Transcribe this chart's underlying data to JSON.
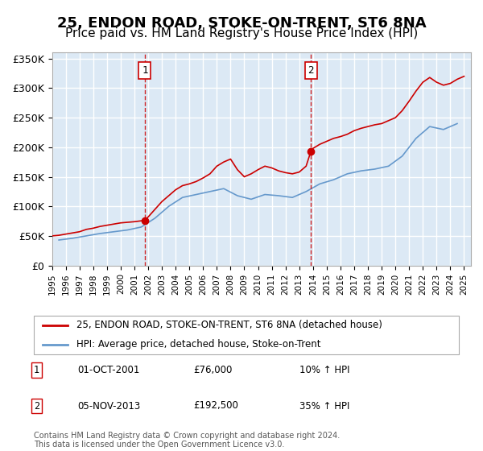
{
  "title": "25, ENDON ROAD, STOKE-ON-TRENT, ST6 8NA",
  "subtitle": "Price paid vs. HM Land Registry's House Price Index (HPI)",
  "title_fontsize": 13,
  "subtitle_fontsize": 11,
  "ylabel_ticks": [
    "£0",
    "£50K",
    "£100K",
    "£150K",
    "£200K",
    "£250K",
    "£300K",
    "£350K"
  ],
  "ytick_values": [
    0,
    50000,
    100000,
    150000,
    200000,
    250000,
    300000,
    350000
  ],
  "ylim": [
    0,
    360000
  ],
  "xlim_start": 1995.0,
  "xlim_end": 2025.5,
  "background_color": "#ffffff",
  "chart_bg_color": "#dce9f5",
  "grid_color": "#ffffff",
  "vline_color": "#cc0000",
  "vline_x": [
    2001.75,
    2013.84
  ],
  "marker_labels": [
    "1",
    "2"
  ],
  "marker_y": 330000,
  "sale1_date": "01-OCT-2001",
  "sale1_price": "£76,000",
  "sale1_hpi": "10% ↑ HPI",
  "sale2_date": "05-NOV-2013",
  "sale2_price": "£192,500",
  "sale2_hpi": "35% ↑ HPI",
  "legend_label_red": "25, ENDON ROAD, STOKE-ON-TRENT, ST6 8NA (detached house)",
  "legend_label_blue": "HPI: Average price, detached house, Stoke-on-Trent",
  "footnote": "Contains HM Land Registry data © Crown copyright and database right 2024.\nThis data is licensed under the Open Government Licence v3.0.",
  "red_line_color": "#cc0000",
  "blue_line_color": "#6699cc",
  "sale1_dot_price": 76000,
  "sale2_dot_price": 192500
}
